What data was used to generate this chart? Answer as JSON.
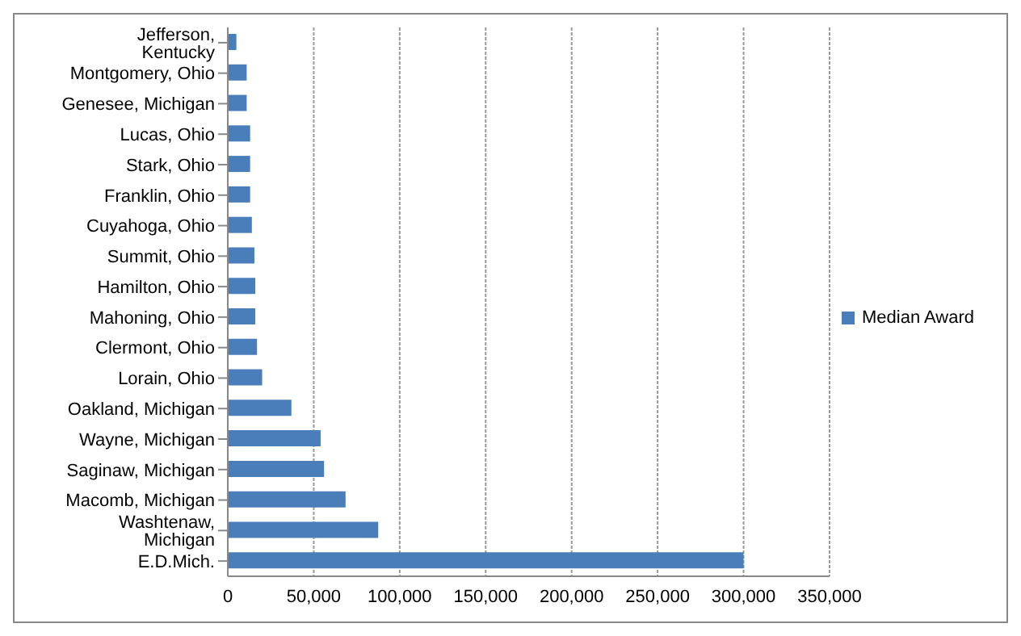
{
  "chart_data": {
    "type": "bar",
    "orientation": "horizontal",
    "categories": [
      "Jefferson, Kentucky",
      "Montgomery, Ohio",
      "Genesee, Michigan",
      "Lucas, Ohio",
      "Stark, Ohio",
      "Franklin, Ohio",
      "Cuyahoga, Ohio",
      "Summit, Ohio",
      "Hamilton, Ohio",
      "Mahoning, Ohio",
      "Clermont, Ohio",
      "Lorain, Ohio",
      "Oakland, Michigan",
      "Wayne, Michigan",
      "Saginaw, Michigan",
      "Macomb, Michigan",
      "Washtenaw, Michigan",
      "E.D.Mich."
    ],
    "series": [
      {
        "name": "Median Award",
        "color": "#4a7ebb",
        "values": [
          5000,
          11000,
          11000,
          13000,
          13000,
          13000,
          14000,
          15500,
          16000,
          16000,
          17000,
          20000,
          37000,
          54000,
          56000,
          68500,
          87500,
          300000
        ]
      }
    ],
    "xlim": [
      0,
      350000
    ],
    "xticks": [
      {
        "value": 0,
        "label": "0"
      },
      {
        "value": 50000,
        "label": "50,000"
      },
      {
        "value": 100000,
        "label": "100,000"
      },
      {
        "value": 150000,
        "label": "150,000"
      },
      {
        "value": 200000,
        "label": "200,000"
      },
      {
        "value": 250000,
        "label": "250,000"
      },
      {
        "value": 300000,
        "label": "300,000"
      },
      {
        "value": 350000,
        "label": "350,000"
      }
    ],
    "grid": "x",
    "legend": "right"
  }
}
